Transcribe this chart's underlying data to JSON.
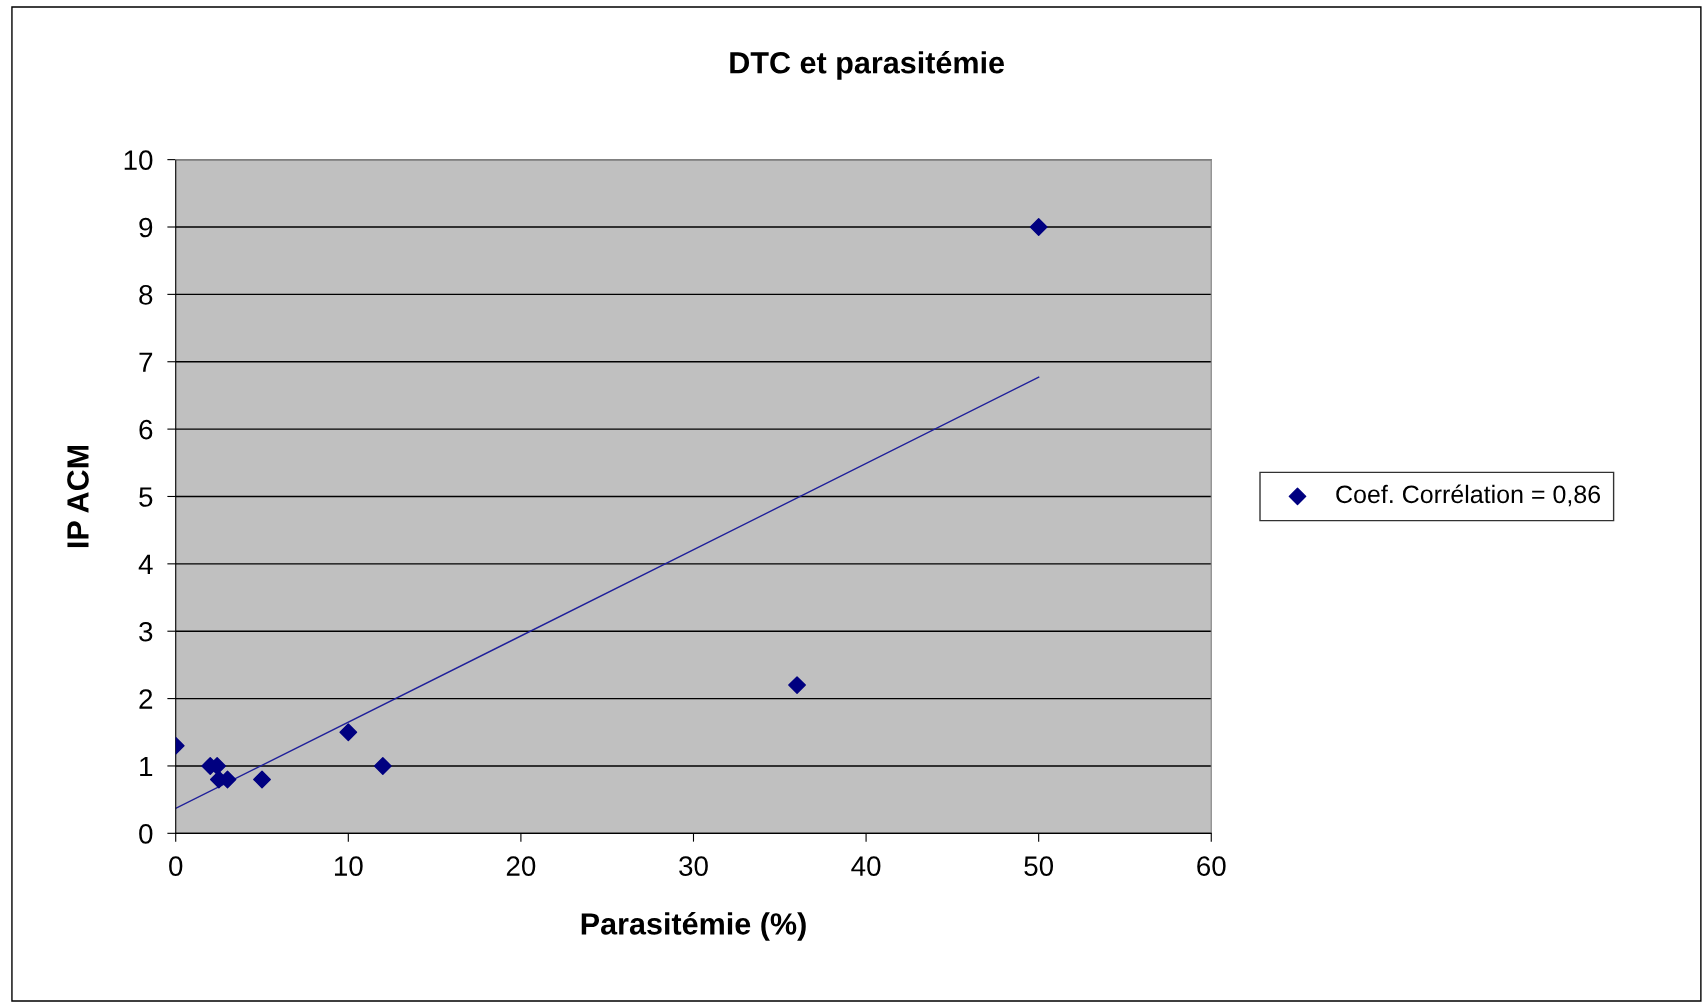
{
  "chart_data": {
    "type": "scatter",
    "title": "DTC et parasitémie",
    "xlabel": "Parasitémie (%)",
    "ylabel": "IP ACM",
    "series": [
      {
        "name": "Coef. Corrélation = 0,86",
        "color": "#000080",
        "marker": "diamond",
        "x": [
          0,
          2,
          2.4,
          2.5,
          3,
          5,
          10,
          12,
          36,
          50
        ],
        "values": [
          1.3,
          1,
          1,
          0.8,
          0.8,
          0.8,
          1.5,
          1,
          2.2,
          9
        ]
      },
      {
        "color": "#1f1f9a",
        "type": "line",
        "x": [
          0,
          50
        ],
        "values": [
          0.37,
          6.77
        ]
      }
    ],
    "xlim": [
      0,
      60
    ],
    "xticks": [
      0,
      10,
      20,
      30,
      40,
      50,
      60
    ],
    "ylim": [
      0,
      10
    ],
    "yticks": [
      0,
      1,
      2,
      3,
      4,
      5,
      6,
      7,
      8,
      9,
      10
    ],
    "grid": "y",
    "legend": "right"
  }
}
